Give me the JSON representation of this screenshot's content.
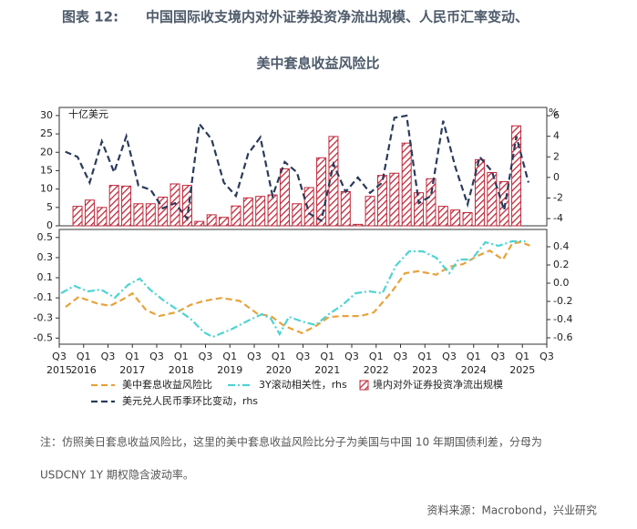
{
  "header": {
    "label": "图表 12:",
    "title": "中国国际收支境内对外证券投资净流出规模、人民币汇率变动、",
    "title2": "美中套息收益风险比"
  },
  "chart_data": [
    {
      "type": "bar",
      "ylabel": "十亿美元",
      "y2label": "%",
      "xlim": [
        2015.5,
        2025.5
      ],
      "ylim": [
        0,
        32.2
      ],
      "yticks": [
        0,
        5,
        10,
        15,
        20,
        25,
        30
      ],
      "y2lim": [
        -4.7,
        6.8
      ],
      "y2ticks": [
        -4,
        -2,
        0,
        2,
        4,
        6
      ],
      "series": [
        {
          "name": "境内对外证券投资净流出规模",
          "type": "bar",
          "color": "#c0283a",
          "x": [
            2015.625,
            2015.875,
            2016.125,
            2016.375,
            2016.625,
            2016.875,
            2017.125,
            2017.375,
            2017.625,
            2017.875,
            2018.125,
            2018.375,
            2018.625,
            2018.875,
            2019.125,
            2019.375,
            2019.625,
            2019.875,
            2020.125,
            2020.375,
            2020.625,
            2020.875,
            2021.125,
            2021.375,
            2021.625,
            2021.875,
            2022.125,
            2022.375,
            2022.625,
            2022.875,
            2023.125,
            2023.375,
            2023.625,
            2023.875,
            2024.125,
            2024.375,
            2024.625,
            2024.875,
            2025.125
          ],
          "values": [
            null,
            5.3,
            7,
            5,
            11,
            10.8,
            6,
            6,
            7.8,
            11.4,
            11,
            1.2,
            3,
            2.3,
            5.4,
            7.6,
            8,
            8.4,
            15.5,
            6,
            10.4,
            18.5,
            24.3,
            9.3,
            0.4,
            8,
            13.7,
            14.3,
            22.5,
            9,
            12.8,
            5.3,
            4.3,
            3.6,
            18,
            14.5,
            12,
            27.2,
            null
          ]
        },
        {
          "name": "美元兑人民币季环比变动，rhs",
          "type": "line",
          "axis": "y2",
          "style": "dashed",
          "color": "#2b3a5c",
          "x": [
            2015.625,
            2015.875,
            2016.125,
            2016.375,
            2016.625,
            2016.875,
            2017.125,
            2017.375,
            2017.625,
            2017.875,
            2018.125,
            2018.375,
            2018.625,
            2018.875,
            2019.125,
            2019.375,
            2019.625,
            2019.875,
            2020.125,
            2020.375,
            2020.625,
            2020.875,
            2021.125,
            2021.375,
            2021.625,
            2021.875,
            2022.125,
            2022.375,
            2022.625,
            2022.875,
            2023.125,
            2023.375,
            2023.625,
            2023.875,
            2024.125,
            2024.375,
            2024.625,
            2024.875,
            2025.125
          ],
          "values": [
            2.5,
            2,
            -0.5,
            3.5,
            0.5,
            4,
            -0.8,
            -1.2,
            -3,
            -2.5,
            -4,
            5.2,
            3.7,
            -0.5,
            -1.8,
            2.3,
            3.9,
            -1.8,
            1.5,
            0.5,
            -3.5,
            -4.2,
            1.3,
            -1.4,
            0,
            -1.5,
            -0.5,
            5.8,
            6,
            -2.5,
            -1.8,
            5.5,
            1,
            -2.6,
            2,
            0.6,
            -3.2,
            4,
            -0.5
          ]
        }
      ]
    },
    {
      "type": "line",
      "xlim": [
        2015.5,
        2025.5
      ],
      "xticks": [
        {
          "value": 2015.5,
          "label": "Q3"
        },
        {
          "value": 2016,
          "label": "Q1"
        },
        {
          "value": 2016.5,
          "label": "Q3"
        },
        {
          "value": 2017,
          "label": "Q1"
        },
        {
          "value": 2017.5,
          "label": "Q3"
        },
        {
          "value": 2018,
          "label": "Q1"
        },
        {
          "value": 2018.5,
          "label": "Q3"
        },
        {
          "value": 2019,
          "label": "Q1"
        },
        {
          "value": 2019.5,
          "label": "Q3"
        },
        {
          "value": 2020,
          "label": "Q1"
        },
        {
          "value": 2020.5,
          "label": "Q3"
        },
        {
          "value": 2021,
          "label": "Q1"
        },
        {
          "value": 2021.5,
          "label": "Q3"
        },
        {
          "value": 2022,
          "label": "Q1"
        },
        {
          "value": 2022.5,
          "label": "Q3"
        },
        {
          "value": 2023,
          "label": "Q1"
        },
        {
          "value": 2023.5,
          "label": "Q3"
        },
        {
          "value": 2024,
          "label": "Q1"
        },
        {
          "value": 2024.5,
          "label": "Q3"
        },
        {
          "value": 2025,
          "label": "Q1"
        },
        {
          "value": 2025.5,
          "label": "Q3"
        }
      ],
      "xyears": [
        {
          "value": 2015.5,
          "label": "2015"
        },
        2016,
        2017,
        2018,
        2019,
        2020,
        2021,
        2022,
        2023,
        2024,
        2025
      ],
      "ylim": [
        -0.56,
        0.58
      ],
      "yticks": [
        -0.5,
        -0.3,
        -0.1,
        0.1,
        0.3,
        0.5
      ],
      "y2lim": [
        -0.67,
        0.59
      ],
      "y2ticks": [
        -0.6,
        -0.4,
        -0.2,
        {
          "value": 0,
          "label": "0.0"
        },
        0.2,
        0.4
      ],
      "series": [
        {
          "name": "美中套息收益风险比",
          "type": "line",
          "style": "dashed",
          "color": "#e8a23a",
          "x": [
            2015.63,
            2015.9,
            2016.27,
            2016.54,
            2016.82,
            2017.0,
            2017.28,
            2017.55,
            2017.92,
            2018.19,
            2018.47,
            2018.83,
            2019.2,
            2019.57,
            2019.84,
            2020.12,
            2020.48,
            2020.76,
            2021.03,
            2021.31,
            2021.68,
            2021.95,
            2022.32,
            2022.59,
            2022.86,
            2023.23,
            2023.5,
            2023.78,
            2024.05,
            2024.33,
            2024.6,
            2024.79,
            2024.97,
            2025.15
          ],
          "values": [
            -0.19,
            -0.09,
            -0.155,
            -0.18,
            -0.11,
            -0.055,
            -0.22,
            -0.28,
            -0.24,
            -0.17,
            -0.13,
            -0.1,
            -0.13,
            -0.26,
            -0.28,
            -0.38,
            -0.45,
            -0.38,
            -0.29,
            -0.28,
            -0.28,
            -0.245,
            -0.04,
            0.145,
            0.165,
            0.13,
            0.21,
            0.235,
            0.31,
            0.37,
            0.28,
            0.44,
            0.455,
            0.42
          ]
        },
        {
          "name": "3Y滚动相关性，rhs",
          "type": "line",
          "axis": "y2",
          "style": "dashdot",
          "color": "#4fd3d3",
          "x": [
            2015.54,
            2015.81,
            2016.09,
            2016.36,
            2016.64,
            2016.91,
            2017.15,
            2017.36,
            2017.64,
            2017.92,
            2018.19,
            2018.47,
            2018.65,
            2019.02,
            2019.38,
            2019.66,
            2019.84,
            2020.02,
            2020.21,
            2020.48,
            2020.76,
            2021.03,
            2021.31,
            2021.58,
            2021.86,
            2022.13,
            2022.4,
            2022.68,
            2022.95,
            2023.23,
            2023.5,
            2023.69,
            2023.96,
            2024.24,
            2024.51,
            2024.79,
            2025.06
          ],
          "values": [
            -0.11,
            -0.03,
            -0.09,
            -0.07,
            -0.16,
            -0.02,
            0.05,
            -0.07,
            -0.19,
            -0.29,
            -0.39,
            -0.54,
            -0.59,
            -0.51,
            -0.41,
            -0.34,
            -0.39,
            -0.56,
            -0.37,
            -0.42,
            -0.46,
            -0.34,
            -0.24,
            -0.11,
            -0.09,
            -0.11,
            0.19,
            0.35,
            0.35,
            0.28,
            0.11,
            0.26,
            0.26,
            0.45,
            0.41,
            0.46,
            0.46
          ]
        }
      ]
    }
  ],
  "note": [
    "注：仿照美日套息收益风险比，这里的美中套息收益风险比分子为美国与中国 10 年期国债利差，分母为",
    "USDCNY 1Y 期权隐含波动率。"
  ],
  "source": "资料来源：Macrobond，兴业研究"
}
